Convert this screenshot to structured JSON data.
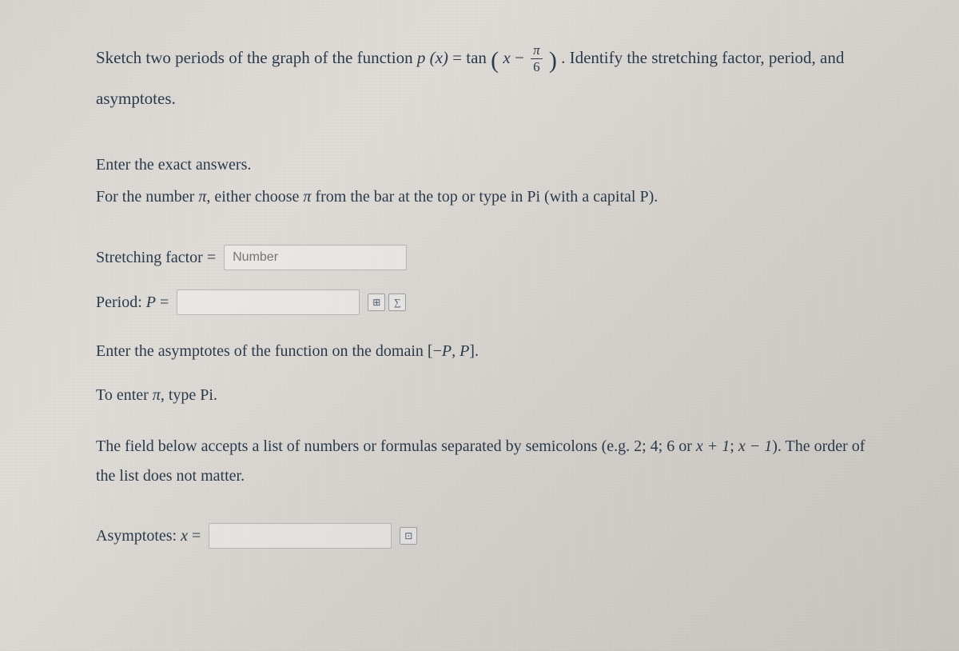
{
  "colors": {
    "text": "#2a3a4a",
    "input_border": "rgba(100,110,120,0.4)",
    "input_bg": "rgba(255,255,255,0.35)",
    "placeholder": "#7a8a9a",
    "paper_bg_start": "#d8d4d0",
    "paper_bg_end": "#c8c4c0"
  },
  "typography": {
    "body_family": "Georgia, Times New Roman, serif",
    "body_size_pt": 15,
    "math_style": "italic"
  },
  "problem": {
    "prefix": "Sketch two periods of the graph of the function ",
    "func_lhs": "p (x)",
    "equals": " = ",
    "func_rhs_name": "tan",
    "paren_open": "(",
    "arg_var": "x",
    "minus": " − ",
    "frac_num": "π",
    "frac_den": "6",
    "paren_close": ")",
    "suffix": ". Identify the stretching factor, period, and asymptotes."
  },
  "instructions": {
    "line1": "Enter the exact answers.",
    "line2_a": "For the number ",
    "pi1": "π",
    "line2_b": ", either choose ",
    "pi2": "π",
    "line2_c": " from the bar at the top or type in Pi (with a capital P)."
  },
  "fields": {
    "stretching_label": "Stretching factor = ",
    "stretching_placeholder": "Number",
    "period_label": "Period: ",
    "period_var": "P",
    "period_equals": " = ",
    "period_value": "",
    "asymptotes_label": "Asymptotes: ",
    "asymptotes_var": "x",
    "asymptotes_equals": " = ",
    "asymptotes_value": ""
  },
  "toolbar": {
    "icon1": "⊞",
    "icon2": "∑",
    "icon3": "⊡"
  },
  "asymptote_section": {
    "prompt_a": "Enter the asymptotes of the function on the domain ",
    "domain_open": "[",
    "domain_neg": "−",
    "domain_P1": "P",
    "domain_comma": ", ",
    "domain_P2": "P",
    "domain_close": "]",
    "prompt_end": ".",
    "pi_hint_a": "To enter ",
    "pi_hint_pi": "π",
    "pi_hint_b": ", type Pi.",
    "list_hint_a": "The field below accepts a list of numbers or formulas separated by semicolons (e.g. 2; 4; 6 or ",
    "list_hint_ex1": "x + 1",
    "list_hint_sep": "; ",
    "list_hint_ex2": "x − 1",
    "list_hint_b": "). The order of the list does not matter."
  }
}
